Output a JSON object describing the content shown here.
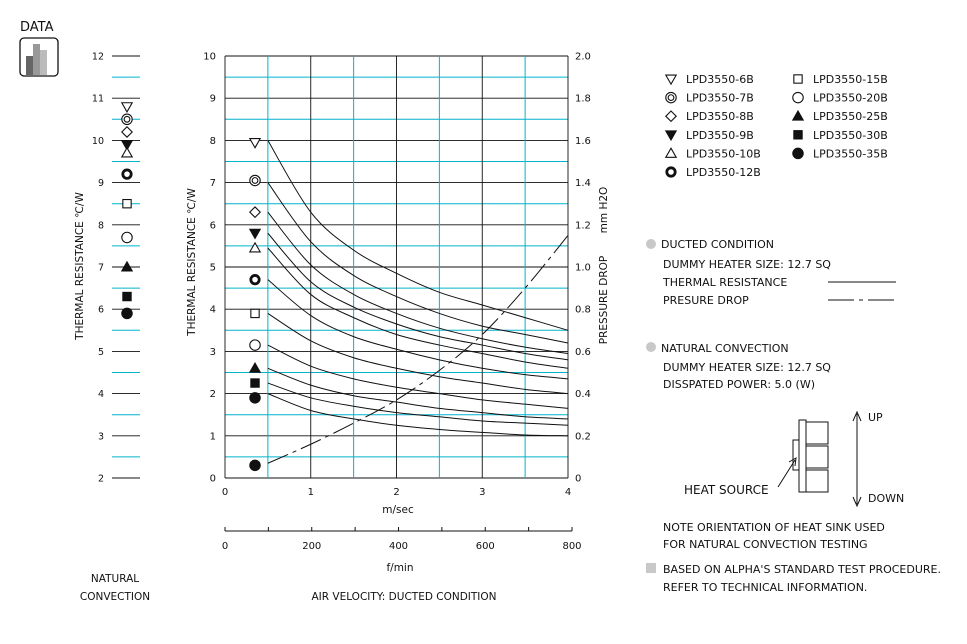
{
  "header": {
    "title": "DATA",
    "icon": "bar-chart-icon"
  },
  "colors": {
    "grid": "#00b4cc",
    "ink": "#111111",
    "note_bullet": "#c8c8c8"
  },
  "left_panel": {
    "ylabel": "THERMAL  RESISTANCE  ℃/W",
    "caption_line1": "NATURAL",
    "caption_line2": "CONVECTION",
    "yticks": [
      "2",
      "3",
      "4",
      "5",
      "6",
      "7",
      "8",
      "9",
      "10",
      "11",
      "12"
    ]
  },
  "main_chart": {
    "ylabel_left": "THERMAL  RESISTANCE  ℃/W",
    "ylabel_right_1": "PRESSURE  DROP",
    "ylabel_right_2": "mm H2O",
    "xlabel_top": "m/sec",
    "xlabel_bottom": "f/min",
    "caption": "AIR VELOCITY:  DUCTED CONDITION",
    "yticks_left": [
      "0",
      "1",
      "2",
      "3",
      "4",
      "5",
      "6",
      "7",
      "8",
      "9",
      "10"
    ],
    "yticks_right": [
      "0",
      "0.2",
      "0.4",
      "0.6",
      "0.8",
      "1.0",
      "1.2",
      "1.4",
      "1.6",
      "1.8",
      "2.0"
    ],
    "xticks_top": [
      "0",
      "1",
      "2",
      "3",
      "4"
    ],
    "xticks_bottom": [
      "0",
      "200",
      "400",
      "600",
      "800"
    ]
  },
  "legend": {
    "col1": [
      {
        "symbol": "tri-down-open",
        "label": "LPD3550-6B"
      },
      {
        "symbol": "double-circle",
        "label": "LPD3550-7B"
      },
      {
        "symbol": "diamond-open",
        "label": "LPD3550-8B"
      },
      {
        "symbol": "tri-down-filled",
        "label": "LPD3550-9B"
      },
      {
        "symbol": "tri-up-open",
        "label": "LPD3550-10B"
      },
      {
        "symbol": "ring-bold",
        "label": "LPD3550-12B"
      }
    ],
    "col2": [
      {
        "symbol": "square-open",
        "label": "LPD3550-15B"
      },
      {
        "symbol": "circle-open",
        "label": "LPD3550-20B"
      },
      {
        "symbol": "tri-up-filled",
        "label": "LPD3550-25B"
      },
      {
        "symbol": "square-filled",
        "label": "LPD3550-30B"
      },
      {
        "symbol": "circle-filled",
        "label": "LPD3550-35B"
      }
    ]
  },
  "notes": {
    "ducted_title": "DUCTED CONDITION",
    "ducted_heater": "DUMMY HEATER SIZE: 12.7 SQ",
    "thermal_resistance": "THERMAL RESISTANCE",
    "pressure_drop": "PRESURE DROP",
    "natural_title": "NATURAL CONVECTION",
    "natural_heater": "DUMMY HEATER SIZE: 12.7 SQ",
    "dissipated": "DISSPATED POWER:  5.0 (W)",
    "up": "UP",
    "down": "DOWN",
    "heat_source": "HEAT SOURCE",
    "orientation_1": "NOTE ORIENTATION OF HEAT SINK USED",
    "orientation_2": "FOR NATURAL CONVECTION TESTING",
    "standard_1": "BASED ON ALPHA'S STANDARD TEST PROCEDURE.",
    "standard_2": "REFER TO TECHNICAL INFORMATION."
  },
  "chart_data": [
    {
      "type": "scatter",
      "title": "NATURAL CONVECTION",
      "ylabel": "THERMAL  RESISTANCE  ℃/W",
      "ylim": [
        2,
        12
      ],
      "grid": true,
      "series": [
        {
          "name": "LPD3550-6B",
          "symbol": "tri-down-open",
          "y": 10.8
        },
        {
          "name": "LPD3550-7B",
          "symbol": "double-circle",
          "y": 10.5
        },
        {
          "name": "LPD3550-8B",
          "symbol": "diamond-open",
          "y": 10.2
        },
        {
          "name": "LPD3550-9B",
          "symbol": "tri-down-filled",
          "y": 9.9
        },
        {
          "name": "LPD3550-10B",
          "symbol": "tri-up-open",
          "y": 9.7
        },
        {
          "name": "LPD3550-12B",
          "symbol": "ring-bold",
          "y": 9.2
        },
        {
          "name": "LPD3550-15B",
          "symbol": "square-open",
          "y": 8.5
        },
        {
          "name": "LPD3550-20B",
          "symbol": "circle-open",
          "y": 7.7
        },
        {
          "name": "LPD3550-25B",
          "symbol": "tri-up-filled",
          "y": 7.0
        },
        {
          "name": "LPD3550-30B",
          "symbol": "square-filled",
          "y": 6.3
        },
        {
          "name": "LPD3550-35B",
          "symbol": "circle-filled",
          "y": 5.9
        }
      ]
    },
    {
      "type": "line",
      "xlabel": "m/sec",
      "xlabel_secondary": "f/min",
      "ylabel": "THERMAL  RESISTANCE  ℃/W",
      "ylabel_right": "PRESSURE  DROP  mm H2O",
      "xlim": [
        0,
        4
      ],
      "ylim": [
        0,
        10
      ],
      "ylim_right": [
        0,
        2.0
      ],
      "grid": true,
      "marker_x": 0.35,
      "series": [
        {
          "name": "LPD3550-6B",
          "symbol": "tri-down-open",
          "marker_y": 7.95,
          "x": [
            0.5,
            1,
            1.5,
            2,
            2.5,
            3,
            3.5,
            4
          ],
          "y": [
            8.0,
            6.3,
            5.4,
            4.85,
            4.4,
            4.1,
            3.8,
            3.5
          ]
        },
        {
          "name": "LPD3550-7B",
          "symbol": "double-circle",
          "marker_y": 7.05,
          "x": [
            0.5,
            1,
            1.5,
            2,
            2.5,
            3,
            3.5,
            4
          ],
          "y": [
            7.0,
            5.6,
            4.8,
            4.3,
            3.9,
            3.6,
            3.4,
            3.2
          ]
        },
        {
          "name": "LPD3550-8B",
          "symbol": "diamond-open",
          "marker_y": 6.3,
          "x": [
            0.5,
            1,
            1.5,
            2,
            2.5,
            3,
            3.5,
            4
          ],
          "y": [
            6.3,
            5.05,
            4.35,
            3.9,
            3.55,
            3.3,
            3.1,
            2.95
          ]
        },
        {
          "name": "LPD3550-9B",
          "symbol": "tri-down-filled",
          "marker_y": 5.8,
          "x": [
            0.5,
            1,
            1.5,
            2,
            2.5,
            3,
            3.5,
            4
          ],
          "y": [
            5.8,
            4.65,
            4.05,
            3.65,
            3.35,
            3.15,
            2.95,
            2.8
          ]
        },
        {
          "name": "LPD3550-10B",
          "symbol": "tri-up-open",
          "marker_y": 5.45,
          "x": [
            0.5,
            1,
            1.5,
            2,
            2.5,
            3,
            3.5,
            4
          ],
          "y": [
            5.45,
            4.35,
            3.8,
            3.4,
            3.15,
            2.95,
            2.75,
            2.6
          ]
        },
        {
          "name": "LPD3550-12B",
          "symbol": "ring-bold",
          "marker_y": 4.7,
          "x": [
            0.5,
            1,
            1.5,
            2,
            2.5,
            3,
            3.5,
            4
          ],
          "y": [
            4.7,
            3.85,
            3.35,
            3.05,
            2.8,
            2.6,
            2.45,
            2.35
          ]
        },
        {
          "name": "LPD3550-15B",
          "symbol": "square-open",
          "marker_y": 3.9,
          "x": [
            0.5,
            1,
            1.5,
            2,
            2.5,
            3,
            3.5,
            4
          ],
          "y": [
            3.9,
            3.25,
            2.85,
            2.6,
            2.4,
            2.25,
            2.1,
            2.0
          ]
        },
        {
          "name": "LPD3550-20B",
          "symbol": "circle-open",
          "marker_y": 3.15,
          "x": [
            0.5,
            1,
            1.5,
            2,
            2.5,
            3,
            3.5,
            4
          ],
          "y": [
            3.15,
            2.65,
            2.35,
            2.15,
            2.0,
            1.85,
            1.75,
            1.65
          ]
        },
        {
          "name": "LPD3550-25B",
          "symbol": "tri-up-filled",
          "marker_y": 2.6,
          "x": [
            0.5,
            1,
            1.5,
            2,
            2.5,
            3,
            3.5,
            4
          ],
          "y": [
            2.6,
            2.2,
            1.95,
            1.8,
            1.65,
            1.55,
            1.45,
            1.4
          ]
        },
        {
          "name": "LPD3550-30B",
          "symbol": "square-filled",
          "marker_y": 2.25,
          "x": [
            0.5,
            1,
            1.5,
            2,
            2.5,
            3,
            3.5,
            4
          ],
          "y": [
            2.25,
            1.9,
            1.7,
            1.55,
            1.45,
            1.35,
            1.3,
            1.25
          ]
        },
        {
          "name": "LPD3550-35B",
          "symbol": "circle-filled",
          "marker_y": 1.9,
          "x": [
            0.5,
            1,
            1.5,
            2,
            2.5,
            3,
            3.5,
            4
          ],
          "y": [
            2.0,
            1.6,
            1.4,
            1.25,
            1.15,
            1.08,
            1.02,
            1.0
          ]
        }
      ],
      "pressure_drop": {
        "symbol": "circle-filled",
        "marker_y": 0.06,
        "x": [
          0.5,
          1,
          1.5,
          2,
          2.5,
          3,
          3.5,
          4
        ],
        "y": [
          0.07,
          0.16,
          0.26,
          0.37,
          0.51,
          0.68,
          0.9,
          1.15
        ]
      }
    }
  ]
}
